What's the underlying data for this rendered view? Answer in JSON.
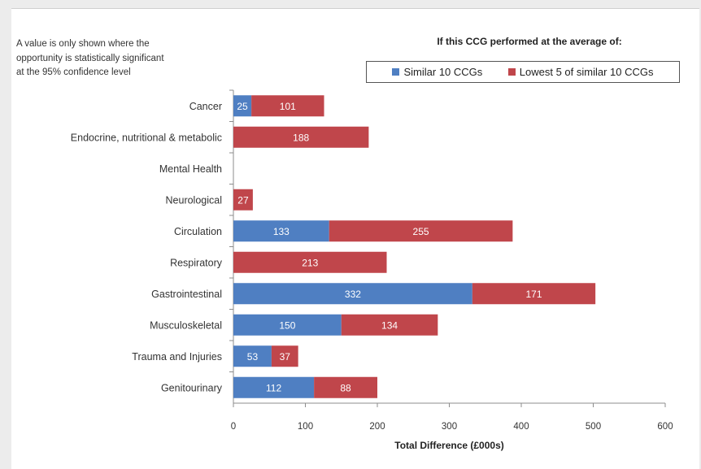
{
  "chart_data": {
    "type": "bar",
    "orientation": "horizontal",
    "stacked": true,
    "note": "A value is only shown where the opportunity is statistically significant at the 95% confidence level",
    "legend_heading": "If this CCG performed at the average of:",
    "legend_placement": "top-right",
    "categories": [
      "Cancer",
      "Endocrine, nutritional & metabolic",
      "Mental Health",
      "Neurological",
      "Circulation",
      "Respiratory",
      "Gastrointestinal",
      "Musculoskeletal",
      "Trauma and Injuries",
      "Genitourinary"
    ],
    "series": [
      {
        "name": "Similar 10 CCGs",
        "color": "#4f7fc2",
        "values": [
          25,
          null,
          null,
          null,
          133,
          null,
          332,
          150,
          53,
          112
        ]
      },
      {
        "name": "Lowest 5 of similar 10 CCGs",
        "color": "#c0464b",
        "values": [
          101,
          188,
          null,
          27,
          255,
          213,
          171,
          134,
          37,
          88
        ]
      }
    ],
    "xlabel": "Total Difference (£000s)",
    "xlim": [
      0,
      600
    ],
    "xticks": [
      0,
      100,
      200,
      300,
      400,
      500,
      600
    ],
    "grid": false
  }
}
